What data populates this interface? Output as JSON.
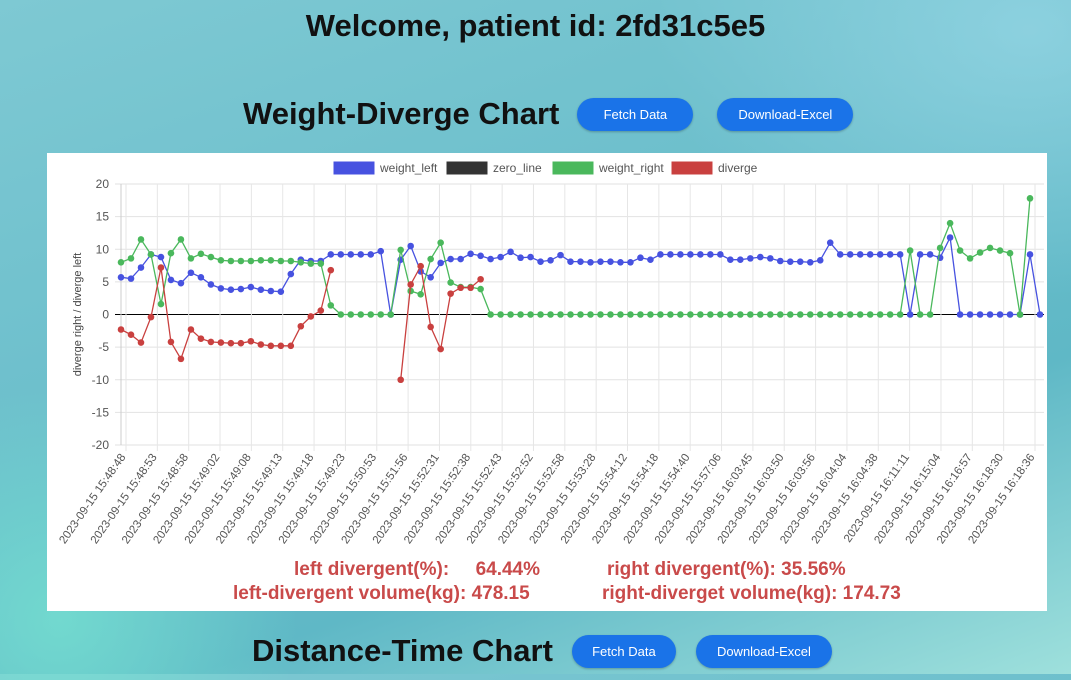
{
  "welcome": "Welcome, patient id: 2fd31c5e5",
  "weight_section": {
    "title": "Weight-Diverge Chart",
    "fetch_label": "Fetch Data",
    "download_label": "Download-Excel"
  },
  "distance_section": {
    "title": "Distance-Time Chart",
    "fetch_label": "Fetch Data",
    "download_label": "Download-Excel"
  },
  "stats": {
    "left_divergent": "left divergent(%):     64.44%",
    "right_divergent": "right divergent(%): 35.56%",
    "left_volume": "left-divergent volume(kg): 478.15",
    "right_volume": "right-diverget volume(kg): 174.73"
  },
  "chart_data": {
    "type": "line",
    "ylabel": "diverge right   /   diverge left",
    "ylim": [
      -20,
      20
    ],
    "yticks": [
      20,
      15,
      10,
      5,
      0,
      -5,
      -10,
      -15,
      -20
    ],
    "grid": true,
    "legend_position": "top",
    "x_tick_labels": [
      "2023-09-15 15:48:48",
      "2023-09-15 15:48:53",
      "2023-09-15 15:48:58",
      "2023-09-15 15:49:02",
      "2023-09-15 15:49:08",
      "2023-09-15 15:49:13",
      "2023-09-15 15:49:18",
      "2023-09-15 15:49:23",
      "2023-09-15 15:50:53",
      "2023-09-15 15:51:56",
      "2023-09-15 15:52:31",
      "2023-09-15 15:52:38",
      "2023-09-15 15:52:43",
      "2023-09-15 15:52:52",
      "2023-09-15 15:52:58",
      "2023-09-15 15:53:28",
      "2023-09-15 15:54:12",
      "2023-09-15 15:54:18",
      "2023-09-15 15:54:40",
      "2023-09-15 15:57:06",
      "2023-09-15 16:03:45",
      "2023-09-15 16:03:50",
      "2023-09-15 16:03:56",
      "2023-09-15 16:04:04",
      "2023-09-15 16:04:38",
      "2023-09-15 16:11:11",
      "2023-09-15 16:15:04",
      "2023-09-15 16:16:57",
      "2023-09-15 16:18:30",
      "2023-09-15 16:18:36"
    ],
    "series": [
      {
        "name": "weight_left",
        "color": "#4752e0",
        "values": [
          5.7,
          5.5,
          7.2,
          9.2,
          8.8,
          5.3,
          4.8,
          6.4,
          5.7,
          4.6,
          4,
          3.8,
          3.9,
          4.2,
          3.8,
          3.6,
          3.5,
          6.2,
          8.4,
          8.2,
          8.2,
          9.2,
          9.2,
          9.2,
          9.2,
          9.2,
          9.7,
          0,
          8.4,
          10.5,
          6.6,
          5.7,
          7.9,
          8.5,
          8.5,
          9.3,
          9,
          8.5,
          8.8,
          9.6,
          8.7,
          8.8,
          8.1,
          8.3,
          9.1,
          8.1,
          8.1,
          8,
          8.1,
          8.1,
          8,
          8,
          8.7,
          8.4,
          9.2,
          9.2,
          9.2,
          9.2,
          9.2,
          9.2,
          9.2,
          8.4,
          8.4,
          8.6,
          8.8,
          8.6,
          8.2,
          8.1,
          8.1,
          8,
          8.3,
          11,
          9.2,
          9.2,
          9.2,
          9.2,
          9.2,
          9.2,
          9.2,
          0,
          9.2,
          9.2,
          8.7,
          11.8,
          0,
          0,
          0,
          0,
          0,
          0,
          0,
          9.2,
          0
        ]
      },
      {
        "name": "zero_line",
        "color": "#333333",
        "values": []
      },
      {
        "name": "weight_right",
        "color": "#4ab85c",
        "values": [
          8,
          8.6,
          11.5,
          9.2,
          1.6,
          9.4,
          11.5,
          8.6,
          9.3,
          8.8,
          8.3,
          8.2,
          8.2,
          8.2,
          8.3,
          8.3,
          8.2,
          8.2,
          8,
          7.8,
          7.8,
          1.4,
          0,
          0,
          0,
          0,
          0,
          0,
          9.9,
          3.6,
          3.1,
          8.5,
          11,
          4.9,
          4.2,
          4.2,
          3.9,
          0,
          0,
          0,
          0,
          0,
          0,
          0,
          0,
          0,
          0,
          0,
          0,
          0,
          0,
          0,
          0,
          0,
          0,
          0,
          0,
          0,
          0,
          0,
          0,
          0,
          0,
          0,
          0,
          0,
          0,
          0,
          0,
          0,
          0,
          0,
          0,
          0,
          0,
          0,
          0,
          0,
          0,
          9.8,
          0,
          0,
          10.2,
          14,
          9.8,
          8.6,
          9.5,
          10.2,
          9.8,
          9.4,
          0,
          17.8
        ]
      },
      {
        "name": "diverge",
        "color": "#c9403f",
        "values": [
          -2.3,
          -3.1,
          -4.3,
          -0.4,
          7.2,
          -4.2,
          -6.8,
          -2.3,
          -3.7,
          -4.2,
          -4.3,
          -4.4,
          -4.4,
          -4.1,
          -4.6,
          -4.8,
          -4.8,
          -4.8,
          -1.8,
          -0.3,
          0.6,
          6.8,
          null,
          null,
          null,
          null,
          null,
          null,
          -10,
          4.6,
          7.4,
          -1.9,
          -5.3,
          3.2,
          4.1,
          4.1,
          5.4
        ]
      }
    ]
  }
}
